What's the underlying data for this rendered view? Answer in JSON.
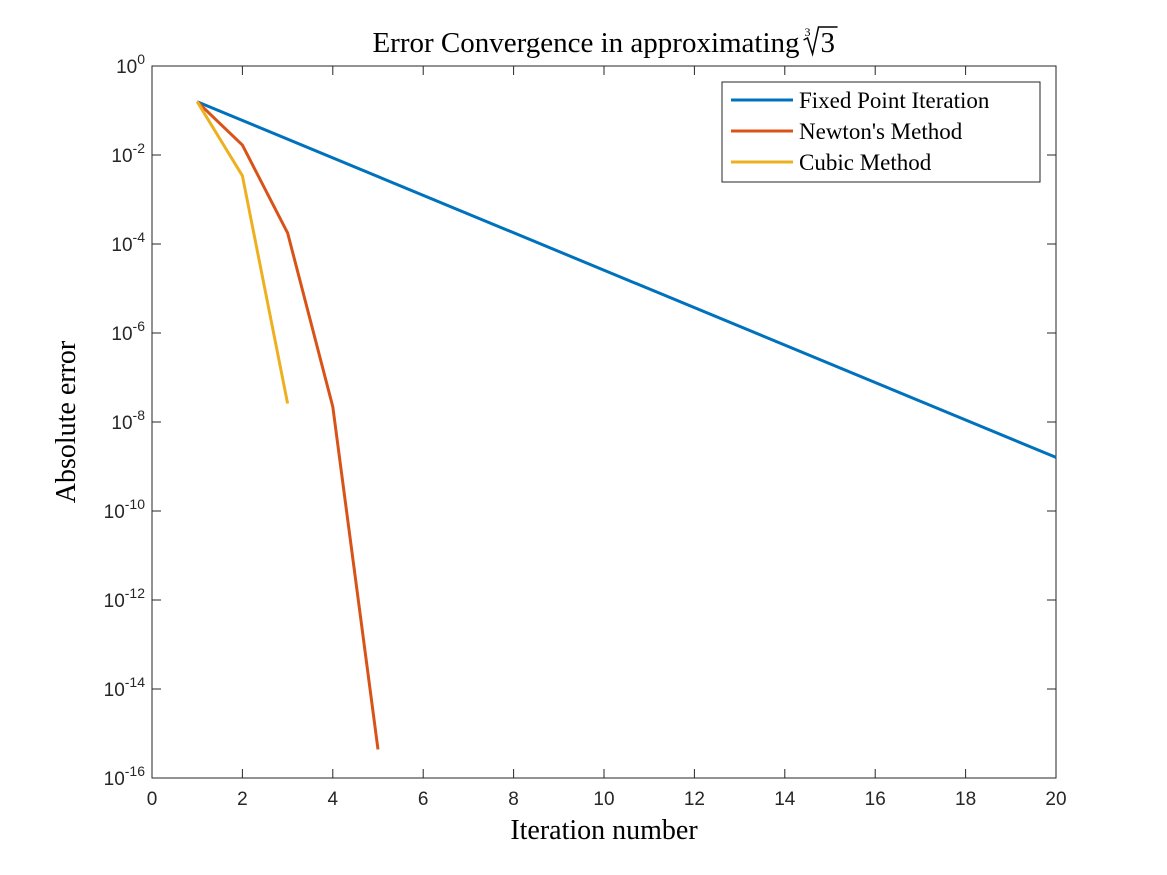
{
  "chart_data": {
    "type": "line",
    "title": "Error Convergence in approximating ∛3",
    "title_parts": {
      "prefix": "Error Convergence in approximating ",
      "root_index": "3",
      "radicand": "3"
    },
    "xlabel": "Iteration number",
    "ylabel": "Absolute error",
    "xlim": [
      0,
      20
    ],
    "ylim": [
      1e-16,
      1
    ],
    "yscale": "log",
    "grid": false,
    "legend_position": "top-right",
    "x_ticks": [
      0,
      2,
      4,
      6,
      8,
      10,
      12,
      14,
      16,
      18,
      20
    ],
    "x_tick_labels": [
      "0",
      "2",
      "4",
      "6",
      "8",
      "10",
      "12",
      "14",
      "16",
      "18",
      "20"
    ],
    "y_ticks": [
      1,
      0.01,
      0.0001,
      1e-06,
      1e-08,
      1e-10,
      1e-12,
      1e-14,
      1e-16
    ],
    "y_tick_labels": [
      {
        "base": "10",
        "exp": "0"
      },
      {
        "base": "10",
        "exp": "-2"
      },
      {
        "base": "10",
        "exp": "-4"
      },
      {
        "base": "10",
        "exp": "-6"
      },
      {
        "base": "10",
        "exp": "-8"
      },
      {
        "base": "10",
        "exp": "-10"
      },
      {
        "base": "10",
        "exp": "-12"
      },
      {
        "base": "10",
        "exp": "-14"
      },
      {
        "base": "10",
        "exp": "-16"
      }
    ],
    "series": [
      {
        "name": "Fixed Point Iteration",
        "color": "#0072BD",
        "x": [
          1,
          20
        ],
        "y": [
          0.1578,
          1.6e-09
        ]
      },
      {
        "name": "Newton's Method",
        "color": "#D95319",
        "x": [
          1,
          2,
          3,
          4,
          5
        ],
        "y": [
          0.1578,
          0.0167,
          0.000178,
          2.2e-08,
          4.4e-16
        ]
      },
      {
        "name": "Cubic Method",
        "color": "#EDB120",
        "x": [
          1,
          2,
          3
        ],
        "y": [
          0.1578,
          0.0034,
          2.6e-08
        ]
      }
    ]
  }
}
